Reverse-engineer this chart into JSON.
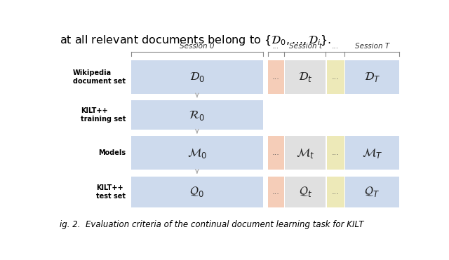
{
  "background_color": "#ffffff",
  "fig_width": 6.4,
  "fig_height": 3.71,
  "dpi": 100,
  "top_text": "at all relevant documents belong to $\\{\\mathcal{D}_0, \\ldots, \\mathcal{D}_i\\}$.",
  "bottom_caption": "ig. 2.  Evaluation criteria of the continual document learning task for KILT",
  "session0_label": "Session 0",
  "sessiont_label": "Session t",
  "sessionT_label": "Session T",
  "color_blue": "#cddaed",
  "color_salmon": "#f5cdb8",
  "color_gray": "#e0e0e0",
  "color_yellow": "#ede9b8",
  "color_arrow": "#aaaaaa",
  "color_bracket": "#888888",
  "rows": [
    {
      "label": "Wikipedia\ndocument set",
      "has_right_cols": true,
      "main_text": "$\\mathcal{D}_0$",
      "right_texts": [
        "...",
        "$\\mathcal{D}_t$",
        "...",
        "$\\mathcal{D}_T$"
      ]
    },
    {
      "label": "KILT++\ntraining set",
      "has_right_cols": false,
      "main_text": "$\\mathcal{R}_0$",
      "right_texts": []
    },
    {
      "label": "Models",
      "has_right_cols": true,
      "main_text": "$\\mathcal{M}_0$",
      "right_texts": [
        "...",
        "$\\mathcal{M}_t$",
        "...",
        "$\\mathcal{M}_T$"
      ]
    },
    {
      "label": "KILT++\ntest set",
      "has_right_cols": true,
      "main_text": "$\\mathcal{Q}_0$",
      "right_texts": [
        "...",
        "$\\mathcal{Q}_t$",
        "...",
        "$\\mathcal{Q}_T$"
      ]
    }
  ]
}
